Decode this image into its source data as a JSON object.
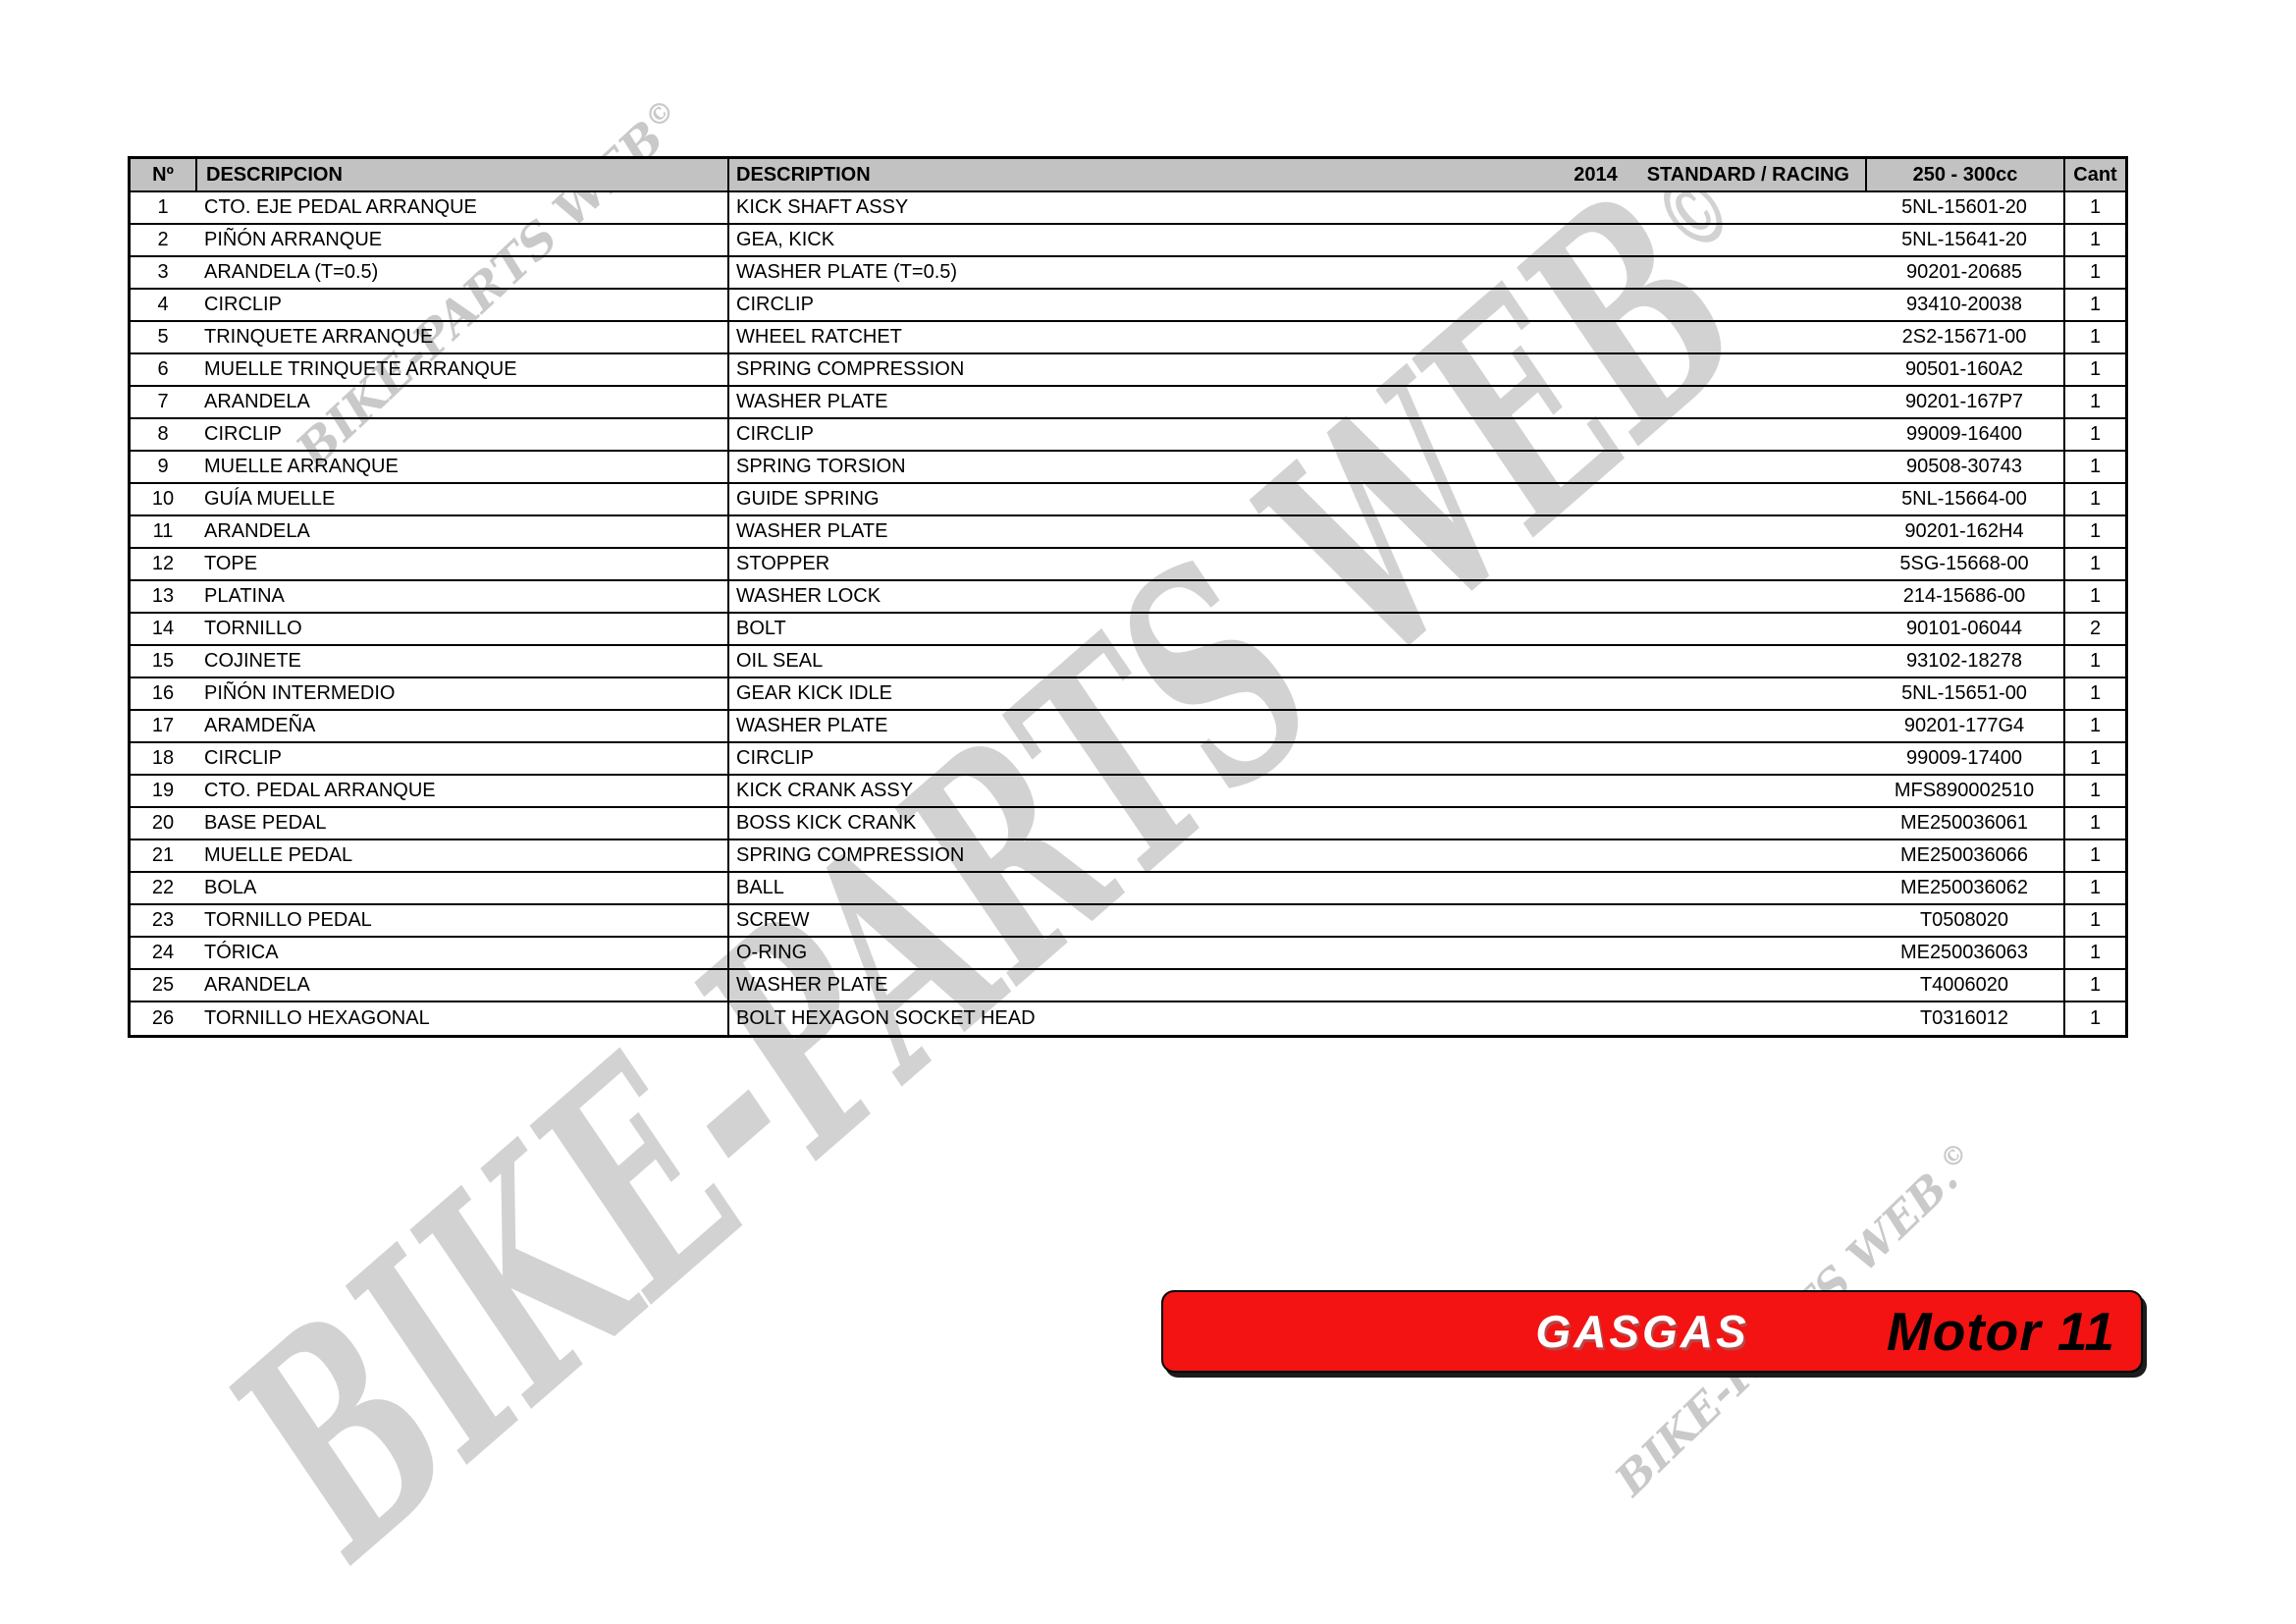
{
  "table": {
    "headers": {
      "no": "Nº",
      "descripcion": "DESCRIPCION",
      "description": "DESCRIPTION",
      "year": "2014",
      "variant": "STANDARD / RACING",
      "cc": "250 - 300cc",
      "qty": "Cant"
    },
    "rows": [
      {
        "no": "1",
        "descripcion": "CTO. EJE PEDAL ARRANQUE",
        "description": "KICK SHAFT ASSY",
        "part": "5NL-15601-20",
        "qty": "1"
      },
      {
        "no": "2",
        "descripcion": "PIÑÓN ARRANQUE",
        "description": "GEA, KICK",
        "part": "5NL-15641-20",
        "qty": "1"
      },
      {
        "no": "3",
        "descripcion": "ARANDELA (T=0.5)",
        "description": "WASHER PLATE (T=0.5)",
        "part": "90201-20685",
        "qty": "1"
      },
      {
        "no": "4",
        "descripcion": "CIRCLIP",
        "description": "CIRCLIP",
        "part": "93410-20038",
        "qty": "1"
      },
      {
        "no": "5",
        "descripcion": "TRINQUETE ARRANQUE",
        "description": "WHEEL RATCHET",
        "part": "2S2-15671-00",
        "qty": "1"
      },
      {
        "no": "6",
        "descripcion": "MUELLE TRINQUETE ARRANQUE",
        "description": "SPRING COMPRESSION",
        "part": "90501-160A2",
        "qty": "1"
      },
      {
        "no": "7",
        "descripcion": "ARANDELA",
        "description": "WASHER PLATE",
        "part": "90201-167P7",
        "qty": "1"
      },
      {
        "no": "8",
        "descripcion": "CIRCLIP",
        "description": "CIRCLIP",
        "part": "99009-16400",
        "qty": "1"
      },
      {
        "no": "9",
        "descripcion": "MUELLE ARRANQUE",
        "description": "SPRING TORSION",
        "part": "90508-30743",
        "qty": "1"
      },
      {
        "no": "10",
        "descripcion": "GUÍA MUELLE",
        "description": "GUIDE SPRING",
        "part": "5NL-15664-00",
        "qty": "1"
      },
      {
        "no": "11",
        "descripcion": "ARANDELA",
        "description": "WASHER PLATE",
        "part": "90201-162H4",
        "qty": "1"
      },
      {
        "no": "12",
        "descripcion": "TOPE",
        "description": "STOPPER",
        "part": "5SG-15668-00",
        "qty": "1"
      },
      {
        "no": "13",
        "descripcion": "PLATINA",
        "description": "WASHER LOCK",
        "part": "214-15686-00",
        "qty": "1"
      },
      {
        "no": "14",
        "descripcion": "TORNILLO",
        "description": "BOLT",
        "part": "90101-06044",
        "qty": "2"
      },
      {
        "no": "15",
        "descripcion": "COJINETE",
        "description": "OIL SEAL",
        "part": "93102-18278",
        "qty": "1"
      },
      {
        "no": "16",
        "descripcion": "PIÑÓN INTERMEDIO",
        "description": "GEAR KICK IDLE",
        "part": "5NL-15651-00",
        "qty": "1"
      },
      {
        "no": "17",
        "descripcion": "ARAMDEÑA",
        "description": "WASHER PLATE",
        "part": "90201-177G4",
        "qty": "1"
      },
      {
        "no": "18",
        "descripcion": "CIRCLIP",
        "description": "CIRCLIP",
        "part": "99009-17400",
        "qty": "1"
      },
      {
        "no": "19",
        "descripcion": "CTO. PEDAL ARRANQUE",
        "description": "KICK CRANK ASSY",
        "part": "MFS890002510",
        "qty": "1"
      },
      {
        "no": "20",
        "descripcion": "BASE PEDAL",
        "description": "BOSS KICK CRANK",
        "part": "ME250036061",
        "qty": "1"
      },
      {
        "no": "21",
        "descripcion": "MUELLE PEDAL",
        "description": "SPRING COMPRESSION",
        "part": "ME250036066",
        "qty": "1"
      },
      {
        "no": "22",
        "descripcion": "BOLA",
        "description": "BALL",
        "part": "ME250036062",
        "qty": "1"
      },
      {
        "no": "23",
        "descripcion": "TORNILLO PEDAL",
        "description": "SCREW",
        "part": "T0508020",
        "qty": "1"
      },
      {
        "no": "24",
        "descripcion": "TÓRICA",
        "description": "O-RING",
        "part": "ME250036063",
        "qty": "1"
      },
      {
        "no": "25",
        "descripcion": "ARANDELA",
        "description": "WASHER PLATE",
        "part": "T4006020",
        "qty": "1"
      },
      {
        "no": "26",
        "descripcion": "TORNILLO HEXAGONAL",
        "description": "BOLT HEXAGON SOCKET HEAD",
        "part": "T0316012",
        "qty": "1"
      }
    ]
  },
  "banner": {
    "brand": "GASGAS",
    "title": "Motor 11",
    "red": "#f31313"
  },
  "watermarks": {
    "large": "BIKE-PARTS WEB",
    "large_mark": "©",
    "top_left": "BIKE-PARTS WEB",
    "top_left_mark": "©",
    "bottom_right": "BIKE-PARTS WEB.",
    "bottom_right_mark": "©"
  }
}
